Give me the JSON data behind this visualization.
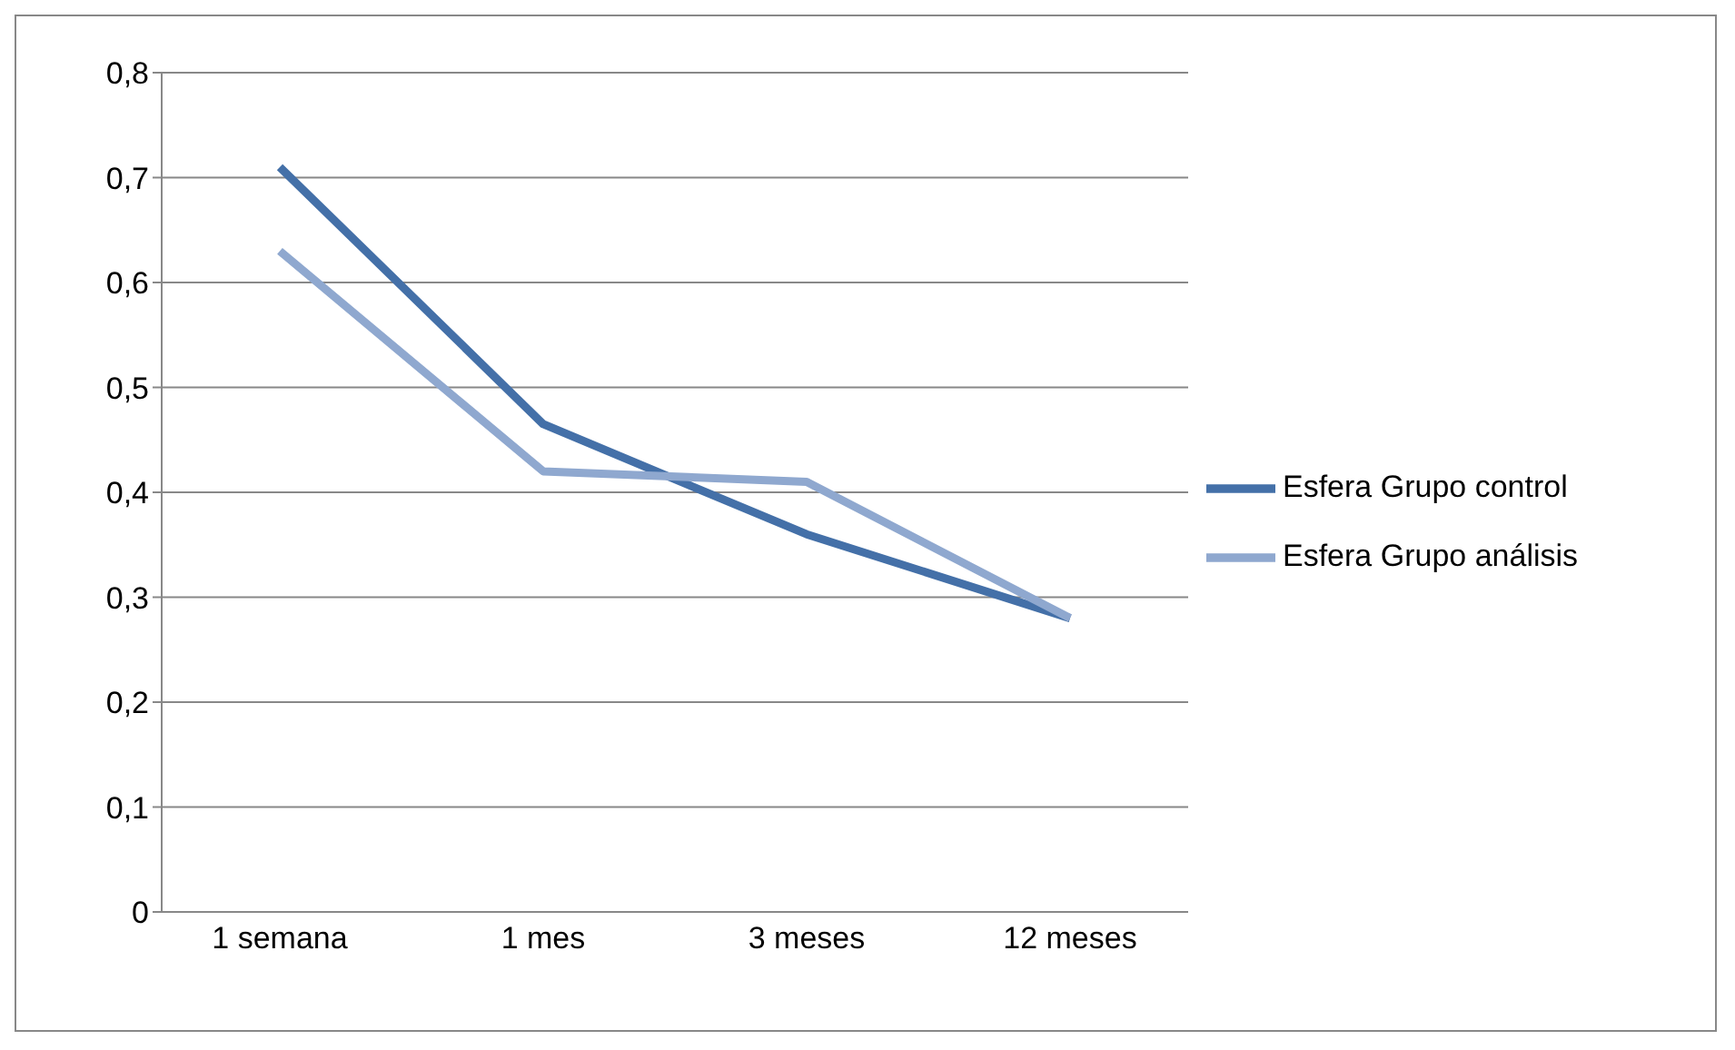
{
  "chart_data": {
    "type": "line",
    "categories": [
      "1 semana",
      "1 mes",
      "3 meses",
      "12 meses"
    ],
    "series": [
      {
        "name": "Esfera Grupo control",
        "color": "#4470a8",
        "values": [
          0.71,
          0.465,
          0.36,
          0.28
        ]
      },
      {
        "name": "Esfera Grupo análisis",
        "color": "#8fa8cf",
        "values": [
          0.63,
          0.42,
          0.41,
          0.28
        ]
      }
    ],
    "ylim": [
      0,
      0.8
    ],
    "yticks": [
      0,
      {
        "value": 0.1,
        "label": "0,1"
      },
      {
        "value": 0.2,
        "label": "0,2"
      },
      {
        "value": 0.3,
        "label": "0,3"
      },
      {
        "value": 0.4,
        "label": "0,4"
      },
      {
        "value": 0.5,
        "label": "0,5"
      },
      {
        "value": 0.6,
        "label": "0,6"
      },
      {
        "value": 0.7,
        "label": "0,7"
      },
      {
        "value": 0.8,
        "label": "0,8"
      }
    ],
    "grid": "y",
    "legend": "right",
    "marker": "none",
    "line_style": "solid"
  }
}
